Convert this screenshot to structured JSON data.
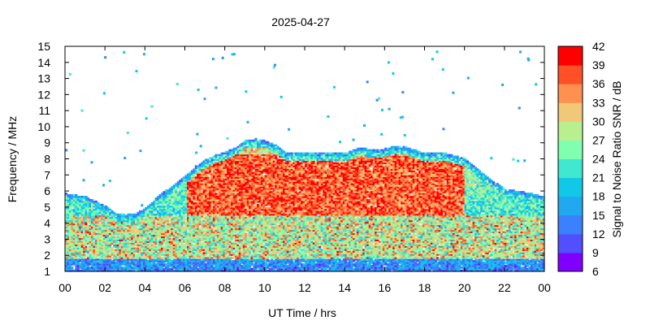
{
  "chart_data": {
    "type": "heatmap",
    "title": "2025-04-27",
    "xlabel": "UT Time / hrs",
    "ylabel": "Frequency / MHz",
    "colorbar_label": "Signal to Noise Ratio SNR / dB",
    "xlim": [
      0,
      24
    ],
    "ylim": [
      1,
      15
    ],
    "x_ticks": [
      "00",
      "02",
      "04",
      "06",
      "08",
      "10",
      "12",
      "14",
      "16",
      "18",
      "20",
      "22",
      "00"
    ],
    "y_ticks": [
      "1",
      "2",
      "3",
      "4",
      "5",
      "6",
      "7",
      "8",
      "9",
      "10",
      "11",
      "12",
      "13",
      "14",
      "15"
    ],
    "colorbar_ticks": [
      "6",
      "9",
      "12",
      "15",
      "18",
      "21",
      "24",
      "27",
      "30",
      "33",
      "36",
      "39",
      "42"
    ],
    "colorbar_range": [
      6,
      42
    ],
    "colorbar_colors": [
      "#8000ff",
      "#5050ff",
      "#3a80ff",
      "#20a8f0",
      "#10c8e8",
      "#40e8d0",
      "#80ffb0",
      "#b8f090",
      "#f0c878",
      "#ff9050",
      "#ff5028",
      "#ff0000"
    ],
    "upper_frequency_envelope_mhz": [
      [
        0,
        5.8
      ],
      [
        1,
        5.6
      ],
      [
        1.5,
        5.3
      ],
      [
        2,
        5.0
      ],
      [
        2.5,
        4.6
      ],
      [
        3,
        4.5
      ],
      [
        3.5,
        4.6
      ],
      [
        4,
        4.9
      ],
      [
        4.5,
        5.5
      ],
      [
        5,
        6.0
      ],
      [
        5.5,
        6.4
      ],
      [
        6,
        6.9
      ],
      [
        6.5,
        7.5
      ],
      [
        7,
        7.9
      ],
      [
        7.5,
        8.2
      ],
      [
        8,
        8.4
      ],
      [
        8.5,
        8.7
      ],
      [
        9,
        9.1
      ],
      [
        9.5,
        9.2
      ],
      [
        10,
        9.1
      ],
      [
        10.5,
        8.8
      ],
      [
        11,
        8.3
      ],
      [
        12,
        8.3
      ],
      [
        13,
        8.3
      ],
      [
        14,
        8.3
      ],
      [
        14.5,
        8.6
      ],
      [
        15,
        8.6
      ],
      [
        15.5,
        8.5
      ],
      [
        16,
        8.6
      ],
      [
        16.5,
        8.8
      ],
      [
        17,
        8.7
      ],
      [
        17.5,
        8.5
      ],
      [
        18,
        8.3
      ],
      [
        19,
        8.3
      ],
      [
        20,
        8.0
      ],
      [
        20.5,
        7.5
      ],
      [
        21,
        7.0
      ],
      [
        21.5,
        6.5
      ],
      [
        22,
        6.1
      ],
      [
        23,
        5.9
      ],
      [
        24,
        5.6
      ]
    ],
    "lower_frequency_cutoff_mhz": 1.0,
    "peak_snr_region": {
      "time_hrs": [
        6,
        20
      ],
      "freq_mhz": [
        4.5,
        8.2
      ],
      "snr_db": 39
    }
  }
}
